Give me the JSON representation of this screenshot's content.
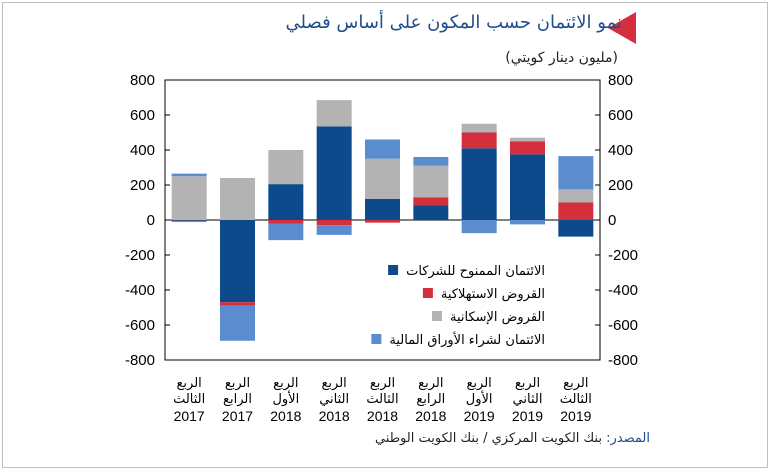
{
  "header": {
    "title": "نمو الائتمان حسب المكون على أساس فصلي",
    "unit": "(مليون دينار كويتي)"
  },
  "footer": {
    "source_label": "المصدر:",
    "source_value": "بنك الكويت المركزي / بنك الكويت الوطني"
  },
  "colors": {
    "marker": "#d32f3c",
    "title": "#1f4e8c"
  },
  "chart_data": {
    "type": "bar",
    "stacked": true,
    "categories": [
      {
        "line1": "الربع",
        "line2": "الثالث",
        "year": "2017"
      },
      {
        "line1": "الربع",
        "line2": "الرابع",
        "year": "2017"
      },
      {
        "line1": "الربع",
        "line2": "الأول",
        "year": "2018"
      },
      {
        "line1": "الربع",
        "line2": "الثاني",
        "year": "2018"
      },
      {
        "line1": "الربع",
        "line2": "الثالث",
        "year": "2018"
      },
      {
        "line1": "الربع",
        "line2": "الرابع",
        "year": "2018"
      },
      {
        "line1": "الربع",
        "line2": "الأول",
        "year": "2019"
      },
      {
        "line1": "الربع",
        "line2": "الثاني",
        "year": "2019"
      },
      {
        "line1": "الربع",
        "line2": "الثالث",
        "year": "2019"
      }
    ],
    "series": [
      {
        "name": "الائتمان الممنوح للشركات",
        "color": "#0d4a8c",
        "values": [
          -5,
          -470,
          205,
          535,
          120,
          85,
          410,
          375,
          -95
        ]
      },
      {
        "name": "القروض الاستهلاكية",
        "color": "#d32f3c",
        "values": [
          -5,
          -20,
          -20,
          -30,
          -15,
          45,
          90,
          75,
          100
        ]
      },
      {
        "name": "القروض الإسكانية",
        "color": "#b3b3b3",
        "values": [
          250,
          240,
          195,
          150,
          230,
          180,
          50,
          20,
          75
        ]
      },
      {
        "name": "الائتمان لشراء الأوراق المالية",
        "color": "#5b8ccf",
        "values": [
          15,
          -200,
          -95,
          -55,
          110,
          50,
          -75,
          -25,
          190
        ]
      }
    ],
    "y_ticks": [
      "800",
      "600",
      "400",
      "200",
      "0",
      "-200",
      "-400",
      "-600",
      "-800"
    ],
    "ylim": [
      -800,
      800
    ],
    "grid": false,
    "legend_position": "lower-right inside plot"
  }
}
